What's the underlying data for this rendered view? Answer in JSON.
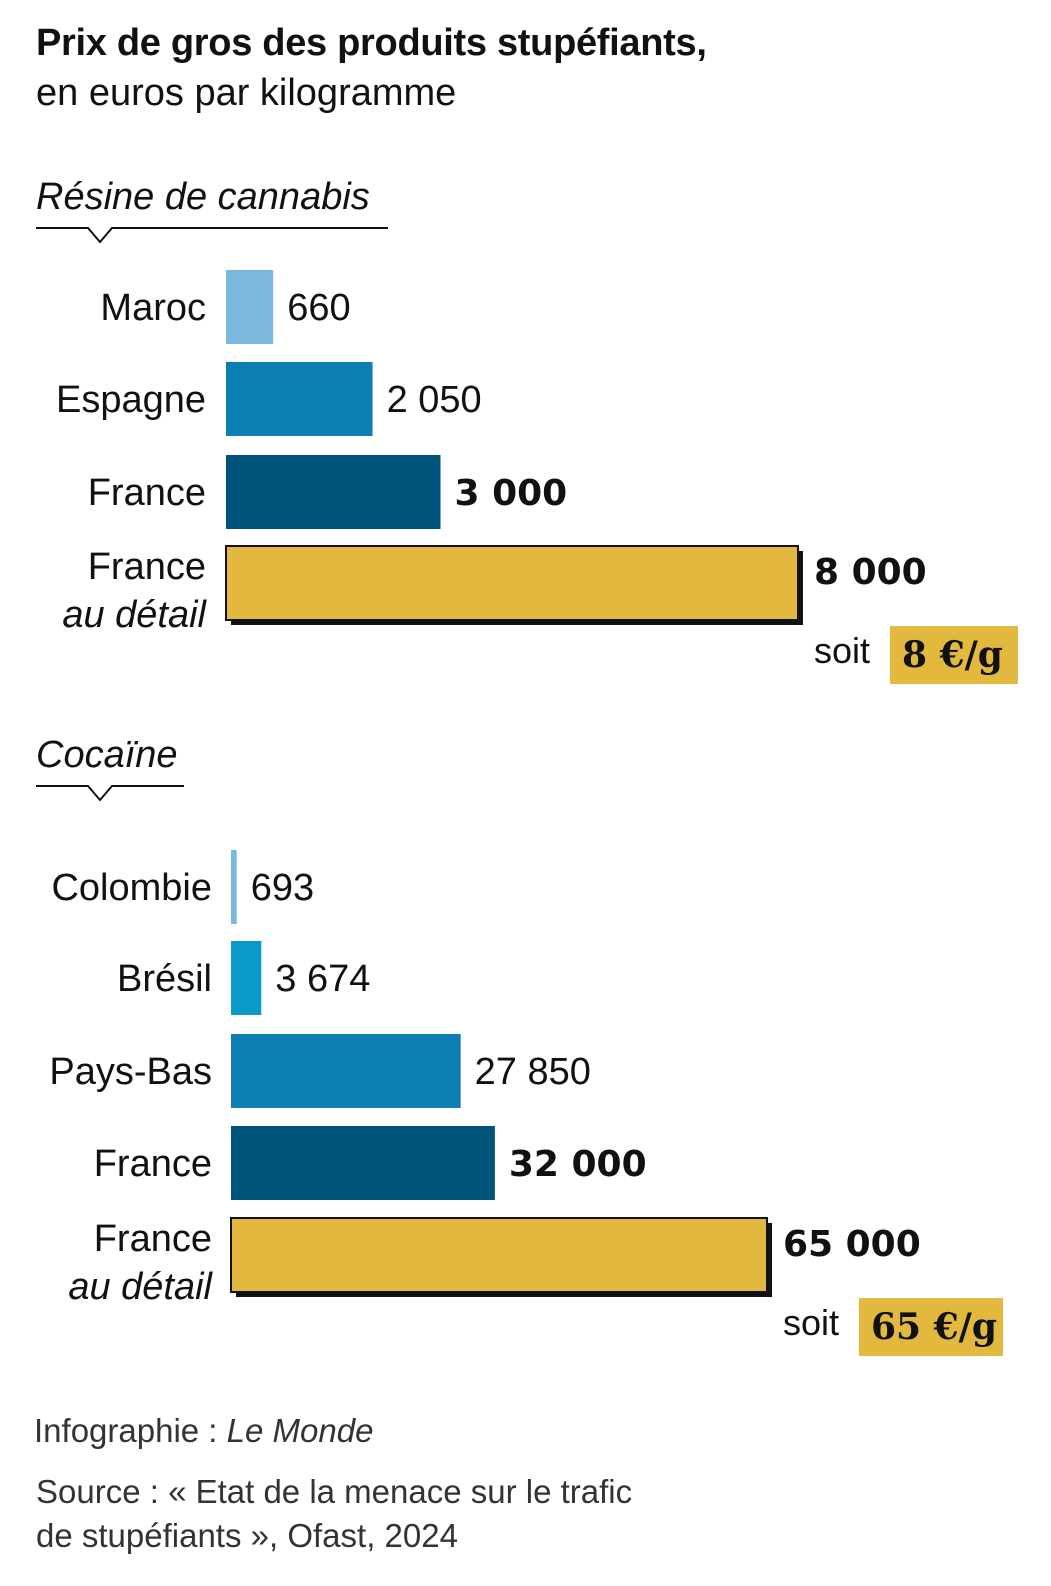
{
  "title": "Prix de gros des produits stupéfiants,",
  "subtitle": "en euros par kilogramme",
  "credit": {
    "prefix": "Infographie : ",
    "name": "Le Monde"
  },
  "source": {
    "line1": "Source : « Etat de la menace sur le trafic",
    "line2": "de stupéfiants », Ofast, 2024"
  },
  "chart_data": [
    {
      "type": "bar",
      "orientation": "horizontal",
      "title": "Résine de cannabis",
      "categories": [
        "Maroc",
        "Espagne",
        "France",
        "France au détail"
      ],
      "category_lines": [
        [
          "Maroc"
        ],
        [
          "Espagne"
        ],
        [
          "France"
        ],
        [
          "France",
          "au détail"
        ]
      ],
      "values": [
        660,
        2050,
        3000,
        8000
      ],
      "value_labels": [
        "660",
        "2 050",
        "3 000",
        "8 000"
      ],
      "bold_values": [
        false,
        false,
        true,
        true
      ],
      "colors": [
        "#7ab9dd",
        "#0e7fb5",
        "#00547b",
        "#e2b83f"
      ],
      "shadow": [
        false,
        false,
        false,
        true
      ],
      "note": {
        "prefix": "soit",
        "value": "8 €/g",
        "bg": "#e2b83f"
      }
    },
    {
      "type": "bar",
      "orientation": "horizontal",
      "title": "Cocaïne",
      "categories": [
        "Colombie",
        "Brésil",
        "Pays-Bas",
        "France",
        "France au détail"
      ],
      "category_lines": [
        [
          "Colombie"
        ],
        [
          "Brésil"
        ],
        [
          "Pays-Bas"
        ],
        [
          "France"
        ],
        [
          "France",
          "au détail"
        ]
      ],
      "values": [
        693,
        3674,
        27850,
        32000,
        65000
      ],
      "value_labels": [
        "693",
        "3 674",
        "27 850",
        "32 000",
        "65 000"
      ],
      "bold_values": [
        false,
        false,
        false,
        true,
        true
      ],
      "colors": [
        "#7ab9dd",
        "#0a9ac8",
        "#0e7fb5",
        "#00547b",
        "#e2b83f"
      ],
      "shadow": [
        false,
        false,
        false,
        false,
        true
      ],
      "note": {
        "prefix": "soit",
        "value": "65 €/g",
        "bg": "#e2b83f"
      }
    }
  ]
}
